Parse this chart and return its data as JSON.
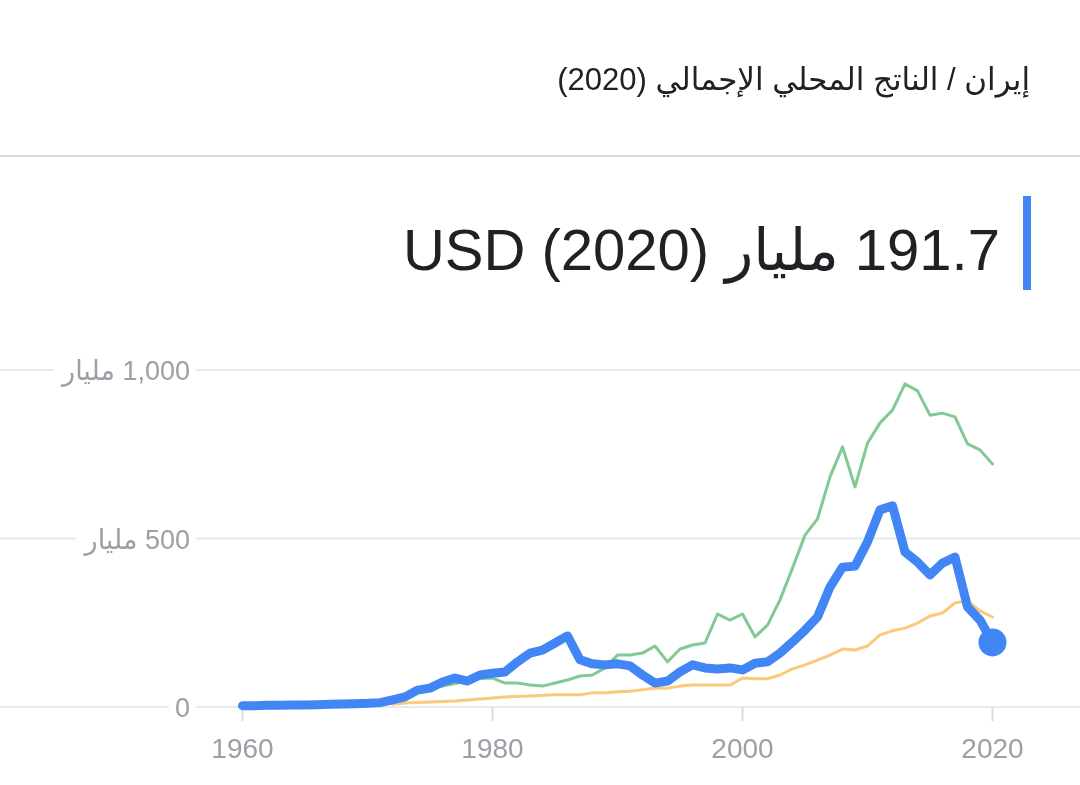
{
  "chart_data": {
    "type": "line",
    "title": "إيران / الناتج المحلي الإجمالي (2020)",
    "subtitle": "191.7 مليار USD (2020)",
    "xlim": [
      1940.6,
      2027
    ],
    "ylim": [
      0,
      1000
    ],
    "xticks": [
      1960,
      1980,
      2000,
      2020
    ],
    "yticks": [
      {
        "value": 0,
        "label": "0"
      },
      {
        "value": 500,
        "label": "500 مليار"
      },
      {
        "value": 1000,
        "label": "1,000 مليار"
      }
    ],
    "grid": "y",
    "series": [
      {
        "color": "#81c995",
        "x": [
          1976,
          1977,
          1979,
          1980,
          1981,
          1982,
          1983,
          1984,
          1985,
          1986,
          1987,
          1988,
          1989,
          1990,
          1991,
          1992,
          1993,
          1994,
          1995,
          1996,
          1997,
          1998,
          1999,
          2000,
          2001,
          2002,
          2003,
          2004,
          2005,
          2006,
          2007,
          2008,
          2009,
          2010,
          2011,
          2012,
          2013,
          2014,
          2015,
          2016,
          2017,
          2018,
          2019,
          2020
        ],
        "values": [
          62,
          70,
          85,
          86,
          71,
          71,
          65,
          62,
          71,
          80,
          92,
          95,
          116,
          154,
          154,
          160,
          181,
          134,
          172,
          184,
          190,
          276,
          258,
          276,
          208,
          243,
          318,
          412,
          510,
          558,
          683,
          772,
          653,
          783,
          843,
          881,
          959,
          938,
          866,
          872,
          861,
          781,
          763,
          721
        ]
      },
      {
        "color": "#fbc97a",
        "x": [
          1972,
          1973,
          1975,
          1977,
          1979,
          1981,
          1983,
          1985,
          1987,
          1988,
          1989,
          1990,
          1991,
          1993,
          1994,
          1995,
          1996,
          1998,
          1999,
          2000,
          2001,
          2002,
          2003,
          2004,
          2005,
          2006,
          2007,
          2008,
          2009,
          2010,
          2011,
          2012,
          2013,
          2014,
          2015,
          2016,
          2017,
          2018,
          2019,
          2020
        ],
        "values": [
          8,
          12,
          15,
          18,
          24,
          30,
          33,
          36,
          36,
          42,
          42,
          45,
          47,
          56,
          56,
          62,
          65,
          65,
          65,
          86,
          84,
          84,
          95,
          113,
          125,
          139,
          154,
          172,
          169,
          181,
          214,
          226,
          234,
          249,
          270,
          279,
          309,
          315,
          285,
          267
        ]
      },
      {
        "color": "#4285f4",
        "x": [
          1960,
          1961,
          1962,
          1963,
          1964,
          1965,
          1966,
          1967,
          1968,
          1969,
          1970,
          1971,
          1972,
          1973,
          1974,
          1975,
          1976,
          1977,
          1978,
          1979,
          1980,
          1981,
          1982,
          1983,
          1984,
          1985,
          1986,
          1987,
          1988,
          1989,
          1990,
          1991,
          1992,
          1993,
          1994,
          1995,
          1996,
          1997,
          1998,
          1999,
          2000,
          2001,
          2002,
          2003,
          2004,
          2005,
          2006,
          2007,
          2008,
          2009,
          2010,
          2011,
          2012,
          2013,
          2014,
          2015,
          2016,
          2017,
          2018,
          2019,
          2020
        ],
        "values": [
          4,
          4,
          5,
          5,
          6,
          6,
          7,
          8,
          9,
          10,
          11,
          13,
          21,
          30,
          50,
          56,
          74,
          86,
          77,
          95,
          100,
          104,
          134,
          160,
          169,
          190,
          211,
          140,
          128,
          125,
          128,
          122,
          95,
          71,
          77,
          104,
          125,
          116,
          113,
          116,
          110,
          130,
          134,
          160,
          193,
          228,
          267,
          356,
          415,
          418,
          490,
          585,
          597,
          460,
          430,
          392,
          427,
          445,
          297,
          258,
          191.7
        ]
      }
    ]
  }
}
